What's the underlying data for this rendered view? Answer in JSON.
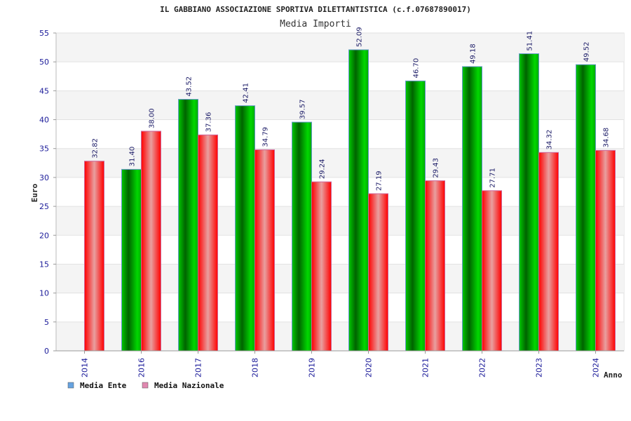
{
  "chart_data": {
    "type": "bar",
    "title": "IL GABBIANO ASSOCIAZIONE SPORTIVA DILETTANTISTICA (c.f.07687890017)",
    "subtitle": "Media Importi",
    "xlabel": "Anno",
    "ylabel": "Euro",
    "ylim": [
      0,
      55
    ],
    "yticks": [
      0,
      5,
      10,
      15,
      20,
      25,
      30,
      35,
      40,
      45,
      50,
      55
    ],
    "categories": [
      "2014",
      "2016",
      "2017",
      "2018",
      "2019",
      "2020",
      "2021",
      "2022",
      "2023",
      "2024"
    ],
    "series": [
      {
        "name": "Media Ente",
        "color": "#00aa00",
        "legend_color": "#66a3e0",
        "values": [
          null,
          31.4,
          43.52,
          42.41,
          39.57,
          52.09,
          46.7,
          49.18,
          51.41,
          49.52
        ],
        "labels": [
          "",
          "31.40",
          "43.52",
          "42.41",
          "39.57",
          "52.09",
          "46.70",
          "49.18",
          "51.41",
          "49.52"
        ]
      },
      {
        "name": "Media Nazionale",
        "color": "#ee0000",
        "legend_color": "#e088b0",
        "values": [
          32.82,
          38.0,
          37.36,
          34.79,
          29.24,
          27.19,
          29.43,
          27.71,
          34.32,
          34.68
        ],
        "labels": [
          "32.82",
          "38.00",
          "37.36",
          "34.79",
          "29.24",
          "27.19",
          "29.43",
          "27.71",
          "34.32",
          "34.68"
        ]
      }
    ],
    "grid": true,
    "legend_position": "bottom-left"
  }
}
